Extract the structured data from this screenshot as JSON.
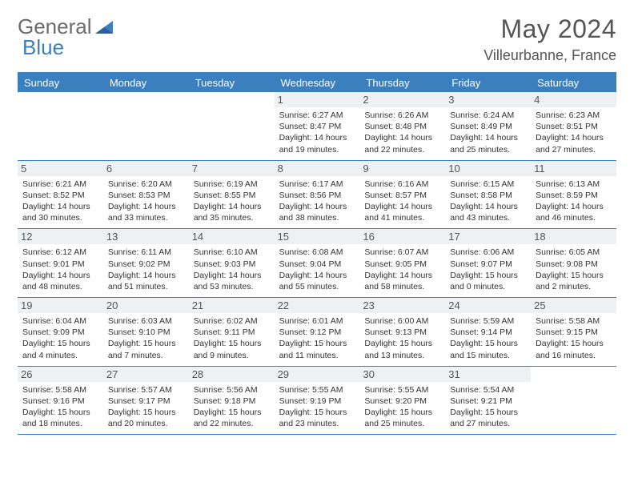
{
  "brand": {
    "word1": "General",
    "word2": "Blue"
  },
  "title": "May 2024",
  "location": "Villeurbanne, France",
  "colors": {
    "accent": "#3b7fbf",
    "header_bg": "#3b7fbf",
    "header_text": "#ffffff",
    "daynum_bg": "#eef1f3",
    "text": "#333333",
    "title_text": "#555555"
  },
  "day_names": [
    "Sunday",
    "Monday",
    "Tuesday",
    "Wednesday",
    "Thursday",
    "Friday",
    "Saturday"
  ],
  "weeks": [
    [
      {
        "blank": true
      },
      {
        "blank": true
      },
      {
        "blank": true
      },
      {
        "n": "1",
        "sunrise": "6:27 AM",
        "sunset": "8:47 PM",
        "daylight": "14 hours and 19 minutes."
      },
      {
        "n": "2",
        "sunrise": "6:26 AM",
        "sunset": "8:48 PM",
        "daylight": "14 hours and 22 minutes."
      },
      {
        "n": "3",
        "sunrise": "6:24 AM",
        "sunset": "8:49 PM",
        "daylight": "14 hours and 25 minutes."
      },
      {
        "n": "4",
        "sunrise": "6:23 AM",
        "sunset": "8:51 PM",
        "daylight": "14 hours and 27 minutes."
      }
    ],
    [
      {
        "n": "5",
        "sunrise": "6:21 AM",
        "sunset": "8:52 PM",
        "daylight": "14 hours and 30 minutes."
      },
      {
        "n": "6",
        "sunrise": "6:20 AM",
        "sunset": "8:53 PM",
        "daylight": "14 hours and 33 minutes."
      },
      {
        "n": "7",
        "sunrise": "6:19 AM",
        "sunset": "8:55 PM",
        "daylight": "14 hours and 35 minutes."
      },
      {
        "n": "8",
        "sunrise": "6:17 AM",
        "sunset": "8:56 PM",
        "daylight": "14 hours and 38 minutes."
      },
      {
        "n": "9",
        "sunrise": "6:16 AM",
        "sunset": "8:57 PM",
        "daylight": "14 hours and 41 minutes."
      },
      {
        "n": "10",
        "sunrise": "6:15 AM",
        "sunset": "8:58 PM",
        "daylight": "14 hours and 43 minutes."
      },
      {
        "n": "11",
        "sunrise": "6:13 AM",
        "sunset": "8:59 PM",
        "daylight": "14 hours and 46 minutes."
      }
    ],
    [
      {
        "n": "12",
        "sunrise": "6:12 AM",
        "sunset": "9:01 PM",
        "daylight": "14 hours and 48 minutes."
      },
      {
        "n": "13",
        "sunrise": "6:11 AM",
        "sunset": "9:02 PM",
        "daylight": "14 hours and 51 minutes."
      },
      {
        "n": "14",
        "sunrise": "6:10 AM",
        "sunset": "9:03 PM",
        "daylight": "14 hours and 53 minutes."
      },
      {
        "n": "15",
        "sunrise": "6:08 AM",
        "sunset": "9:04 PM",
        "daylight": "14 hours and 55 minutes."
      },
      {
        "n": "16",
        "sunrise": "6:07 AM",
        "sunset": "9:05 PM",
        "daylight": "14 hours and 58 minutes."
      },
      {
        "n": "17",
        "sunrise": "6:06 AM",
        "sunset": "9:07 PM",
        "daylight": "15 hours and 0 minutes."
      },
      {
        "n": "18",
        "sunrise": "6:05 AM",
        "sunset": "9:08 PM",
        "daylight": "15 hours and 2 minutes."
      }
    ],
    [
      {
        "n": "19",
        "sunrise": "6:04 AM",
        "sunset": "9:09 PM",
        "daylight": "15 hours and 4 minutes."
      },
      {
        "n": "20",
        "sunrise": "6:03 AM",
        "sunset": "9:10 PM",
        "daylight": "15 hours and 7 minutes."
      },
      {
        "n": "21",
        "sunrise": "6:02 AM",
        "sunset": "9:11 PM",
        "daylight": "15 hours and 9 minutes."
      },
      {
        "n": "22",
        "sunrise": "6:01 AM",
        "sunset": "9:12 PM",
        "daylight": "15 hours and 11 minutes."
      },
      {
        "n": "23",
        "sunrise": "6:00 AM",
        "sunset": "9:13 PM",
        "daylight": "15 hours and 13 minutes."
      },
      {
        "n": "24",
        "sunrise": "5:59 AM",
        "sunset": "9:14 PM",
        "daylight": "15 hours and 15 minutes."
      },
      {
        "n": "25",
        "sunrise": "5:58 AM",
        "sunset": "9:15 PM",
        "daylight": "15 hours and 16 minutes."
      }
    ],
    [
      {
        "n": "26",
        "sunrise": "5:58 AM",
        "sunset": "9:16 PM",
        "daylight": "15 hours and 18 minutes."
      },
      {
        "n": "27",
        "sunrise": "5:57 AM",
        "sunset": "9:17 PM",
        "daylight": "15 hours and 20 minutes."
      },
      {
        "n": "28",
        "sunrise": "5:56 AM",
        "sunset": "9:18 PM",
        "daylight": "15 hours and 22 minutes."
      },
      {
        "n": "29",
        "sunrise": "5:55 AM",
        "sunset": "9:19 PM",
        "daylight": "15 hours and 23 minutes."
      },
      {
        "n": "30",
        "sunrise": "5:55 AM",
        "sunset": "9:20 PM",
        "daylight": "15 hours and 25 minutes."
      },
      {
        "n": "31",
        "sunrise": "5:54 AM",
        "sunset": "9:21 PM",
        "daylight": "15 hours and 27 minutes."
      },
      {
        "blank": true
      }
    ]
  ],
  "labels": {
    "sunrise_prefix": "Sunrise: ",
    "sunset_prefix": "Sunset: ",
    "daylight_prefix": "Daylight: "
  }
}
